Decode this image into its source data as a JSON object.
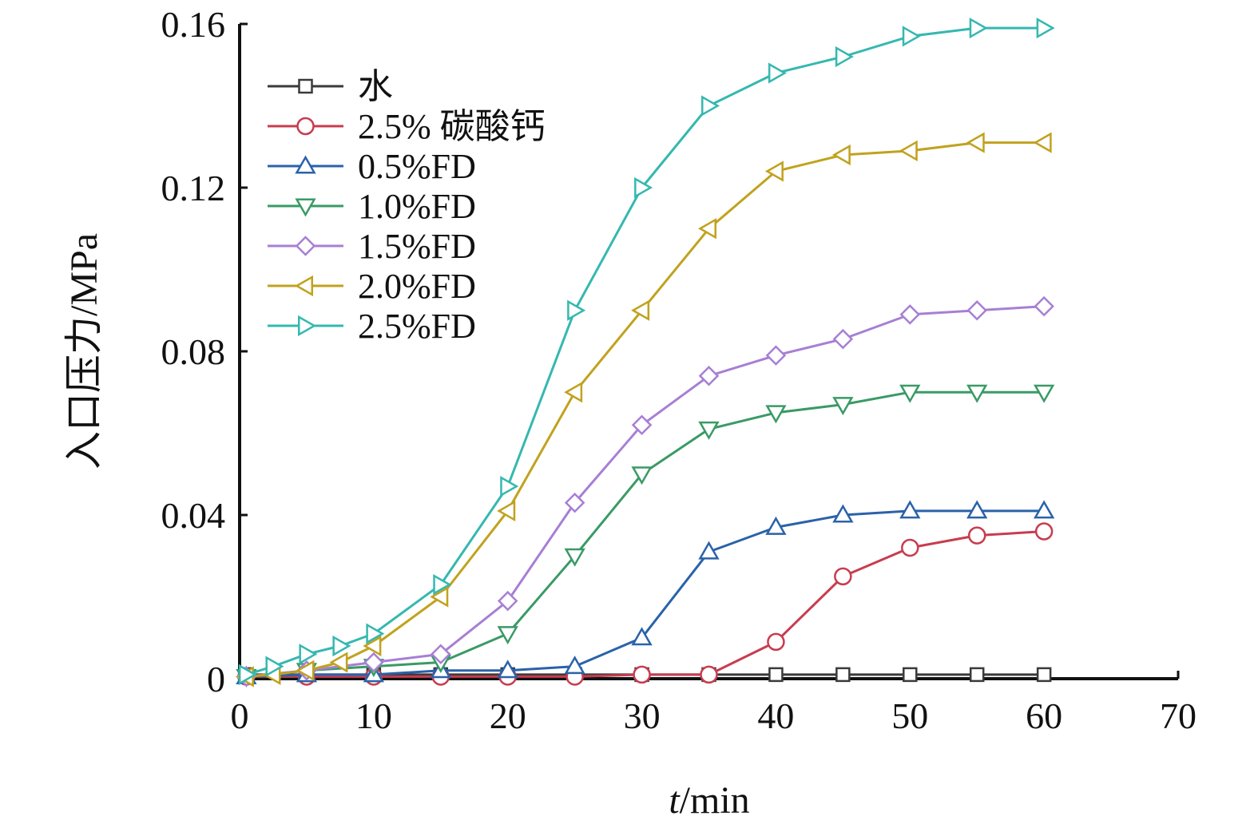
{
  "chart_data": {
    "type": "line",
    "title": "",
    "xlabel_italic": "t",
    "xlabel_rest": "/min",
    "ylabel": "入口压力/MPa",
    "xlim": [
      0,
      70
    ],
    "ylim": [
      0,
      0.16
    ],
    "x_ticks": [
      "0",
      "10",
      "20",
      "30",
      "40",
      "50",
      "60",
      "70"
    ],
    "y_ticks": [
      "0",
      "0.04",
      "0.08",
      "0.12",
      "0.16"
    ],
    "grid": false,
    "legend_position": "top-left",
    "series": [
      {
        "name": "水",
        "color": "#3a3a3a",
        "marker": "square",
        "x": [
          0.5,
          5,
          10,
          15,
          20,
          25,
          30,
          35,
          40,
          45,
          50,
          55,
          60
        ],
        "y": [
          0.001,
          0.001,
          0.001,
          0.001,
          0.001,
          0.001,
          0.001,
          0.001,
          0.001,
          0.001,
          0.001,
          0.001,
          0.001
        ]
      },
      {
        "name": "2.5% 碳酸钙",
        "color": "#c83c4f",
        "marker": "circle",
        "x": [
          0.5,
          5,
          10,
          15,
          20,
          25,
          30,
          35,
          40,
          45,
          50,
          55,
          60
        ],
        "y": [
          0.0005,
          0.0005,
          0.0005,
          0.0005,
          0.0005,
          0.0005,
          0.001,
          0.001,
          0.009,
          0.025,
          0.032,
          0.035,
          0.036
        ]
      },
      {
        "name": "0.5%FD",
        "color": "#2a62aa",
        "marker": "triangle-up",
        "x": [
          0.5,
          5,
          10,
          15,
          20,
          25,
          30,
          35,
          40,
          45,
          50,
          55,
          60
        ],
        "y": [
          0.0005,
          0.001,
          0.001,
          0.002,
          0.002,
          0.003,
          0.01,
          0.031,
          0.037,
          0.04,
          0.041,
          0.041,
          0.041
        ]
      },
      {
        "name": "1.0%FD",
        "color": "#3a9a66",
        "marker": "triangle-down",
        "x": [
          0.5,
          5,
          10,
          15,
          20,
          25,
          30,
          35,
          40,
          45,
          50,
          55,
          60
        ],
        "y": [
          0.0005,
          0.002,
          0.003,
          0.004,
          0.011,
          0.03,
          0.05,
          0.061,
          0.065,
          0.067,
          0.07,
          0.07,
          0.07
        ]
      },
      {
        "name": "1.5%FD",
        "color": "#a77fd4",
        "marker": "diamond",
        "x": [
          0.5,
          5,
          10,
          15,
          20,
          25,
          30,
          35,
          40,
          45,
          50,
          55,
          60
        ],
        "y": [
          0.0005,
          0.002,
          0.004,
          0.006,
          0.019,
          0.043,
          0.062,
          0.074,
          0.079,
          0.083,
          0.089,
          0.09,
          0.091
        ]
      },
      {
        "name": "2.0%FD",
        "color": "#c1a21e",
        "marker": "triangle-left",
        "x": [
          0.5,
          2.5,
          5,
          7.5,
          10,
          15,
          20,
          25,
          30,
          35,
          40,
          45,
          50,
          55,
          60
        ],
        "y": [
          0.0005,
          0.001,
          0.002,
          0.004,
          0.008,
          0.02,
          0.041,
          0.07,
          0.09,
          0.11,
          0.124,
          0.128,
          0.129,
          0.131,
          0.131
        ]
      },
      {
        "name": "2.5%FD",
        "color": "#35b8b0",
        "marker": "triangle-right",
        "x": [
          0.5,
          2.5,
          5,
          7.5,
          10,
          15,
          20,
          25,
          30,
          35,
          40,
          45,
          50,
          55,
          60
        ],
        "y": [
          0.001,
          0.003,
          0.006,
          0.008,
          0.011,
          0.023,
          0.047,
          0.09,
          0.12,
          0.14,
          0.148,
          0.152,
          0.157,
          0.159,
          0.159
        ]
      }
    ]
  }
}
